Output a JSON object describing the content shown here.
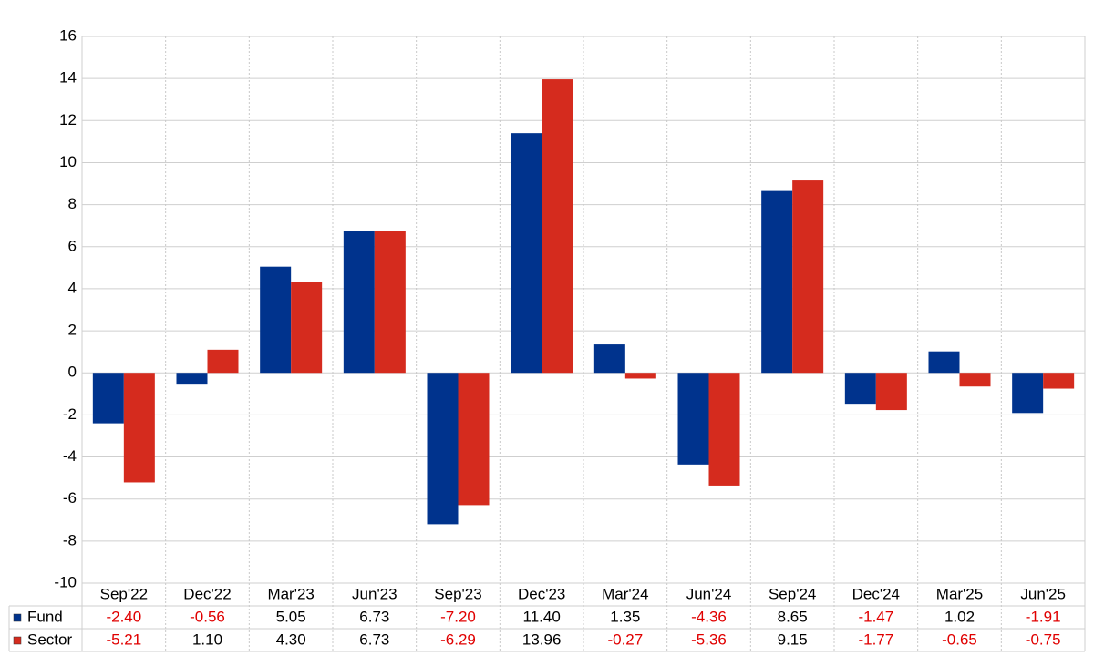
{
  "chart_data": {
    "type": "bar",
    "categories": [
      "Sep'22",
      "Dec'22",
      "Mar'23",
      "Jun'23",
      "Sep'23",
      "Dec'23",
      "Mar'24",
      "Jun'24",
      "Sep'24",
      "Dec'24",
      "Mar'25",
      "Jun'25"
    ],
    "series": [
      {
        "name": "Fund",
        "color": "#00338d",
        "values": [
          -2.4,
          -0.56,
          5.05,
          6.73,
          -7.2,
          11.4,
          1.35,
          -4.36,
          8.65,
          -1.47,
          1.02,
          -1.91
        ],
        "value_labels": [
          "-2.40",
          "-0.56",
          "5.05",
          "6.73",
          "-7.20",
          "11.40",
          "1.35",
          "-4.36",
          "8.65",
          "-1.47",
          "1.02",
          "-1.91"
        ]
      },
      {
        "name": "Sector",
        "color": "#d52b1e",
        "values": [
          -5.21,
          1.1,
          4.3,
          6.73,
          -6.29,
          13.96,
          -0.27,
          -5.36,
          9.15,
          -1.77,
          -0.65,
          -0.75
        ],
        "value_labels": [
          "-5.21",
          "1.10",
          "4.30",
          "6.73",
          "-6.29",
          "13.96",
          "-0.27",
          "-5.36",
          "9.15",
          "-1.77",
          "-0.65",
          "-0.75"
        ]
      }
    ],
    "ylim": [
      -10,
      16
    ],
    "yticks": [
      -10,
      -8,
      -6,
      -4,
      -2,
      0,
      2,
      4,
      6,
      8,
      10,
      12,
      14,
      16
    ],
    "grid": true,
    "negative_label_color": "#e00000"
  }
}
